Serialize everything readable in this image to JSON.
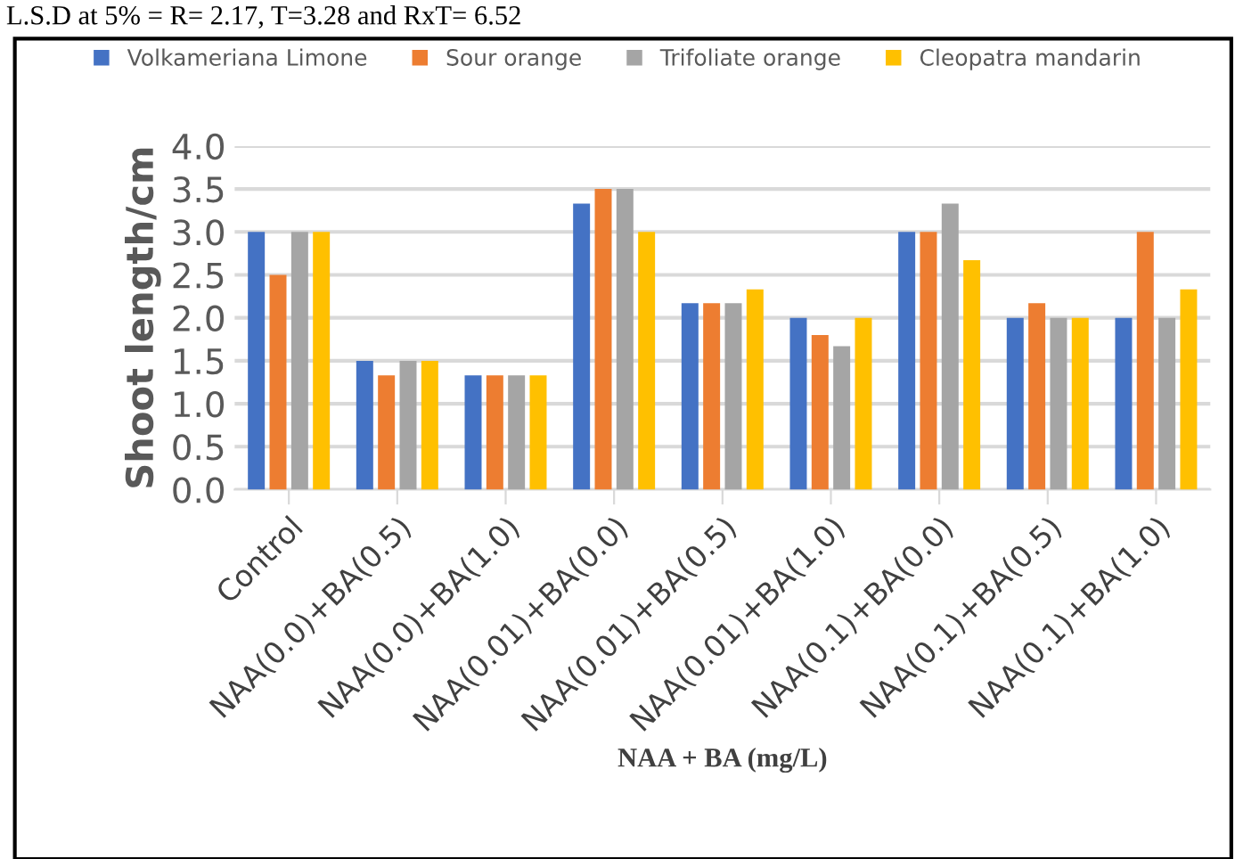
{
  "chart_data": {
    "type": "bar",
    "categories": [
      "Control",
      "NAA(0.0)+BA(0.5)",
      "NAA(0.0)+BA(1.0)",
      "NAA(0.01)+BA(0.0)",
      "NAA(0.01)+BA(0.5)",
      "NAA(0.01)+BA(1.0)",
      "NAA(0.1)+BA(0.0)",
      "NAA(0.1)+BA(0.5)",
      "NAA(0.1)+BA(1.0)"
    ],
    "series": [
      {
        "name": "Volkameriana Limone",
        "color": "#4472c4",
        "values": [
          3.0,
          1.5,
          1.33,
          3.33,
          2.17,
          2.0,
          3.0,
          2.0,
          2.0
        ]
      },
      {
        "name": "Sour orange",
        "color": "#ed7d31",
        "values": [
          2.5,
          1.33,
          1.33,
          3.5,
          2.17,
          1.8,
          3.0,
          2.17,
          3.0
        ]
      },
      {
        "name": "Trifoliate orange",
        "color": "#a5a5a5",
        "values": [
          3.0,
          1.5,
          1.33,
          3.5,
          2.17,
          1.67,
          3.33,
          2.0,
          2.0
        ]
      },
      {
        "name": "Cleopatra mandarin",
        "color": "#ffc000",
        "values": [
          3.0,
          1.5,
          1.33,
          3.0,
          2.33,
          2.0,
          2.67,
          2.0,
          2.33
        ]
      }
    ],
    "ylim": [
      0,
      4.0
    ],
    "yticks": [
      {
        "value": 0,
        "label": "0.0"
      },
      {
        "value": 0.5,
        "label": "0.5"
      },
      {
        "value": 1,
        "label": "1.0"
      },
      {
        "value": 1.5,
        "label": "1.5"
      },
      {
        "value": 2,
        "label": "2.0"
      },
      {
        "value": 2.5,
        "label": "2.5"
      },
      {
        "value": 3,
        "label": "3.0"
      },
      {
        "value": 3.5,
        "label": "3.5"
      },
      {
        "value": 4,
        "label": "4.0"
      }
    ],
    "ylabel": "Shoot length/cm",
    "xlabel": "NAA + BA (mg/L)",
    "annotations": [
      "L.S.D at 5% = R= 2.17, T=3.28 and RxT= 6.52"
    ],
    "grid": "y",
    "legend": "top"
  }
}
